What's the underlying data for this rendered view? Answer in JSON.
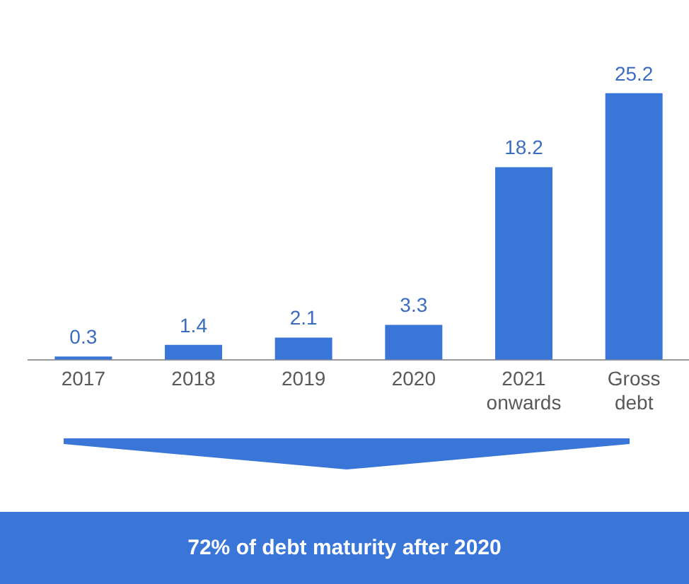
{
  "chart_data": {
    "type": "bar",
    "categories": [
      "2017",
      "2018",
      "2019",
      "2020",
      "2021 onwards",
      "Gross debt"
    ],
    "values": [
      0.3,
      1.4,
      2.1,
      3.3,
      18.2,
      25.2
    ],
    "color": "#3a75d8",
    "data_labels": true,
    "grid": false,
    "legend": false,
    "tick_labels": "x",
    "annotations": [
      "72% of debt maturity after 2020"
    ]
  }
}
